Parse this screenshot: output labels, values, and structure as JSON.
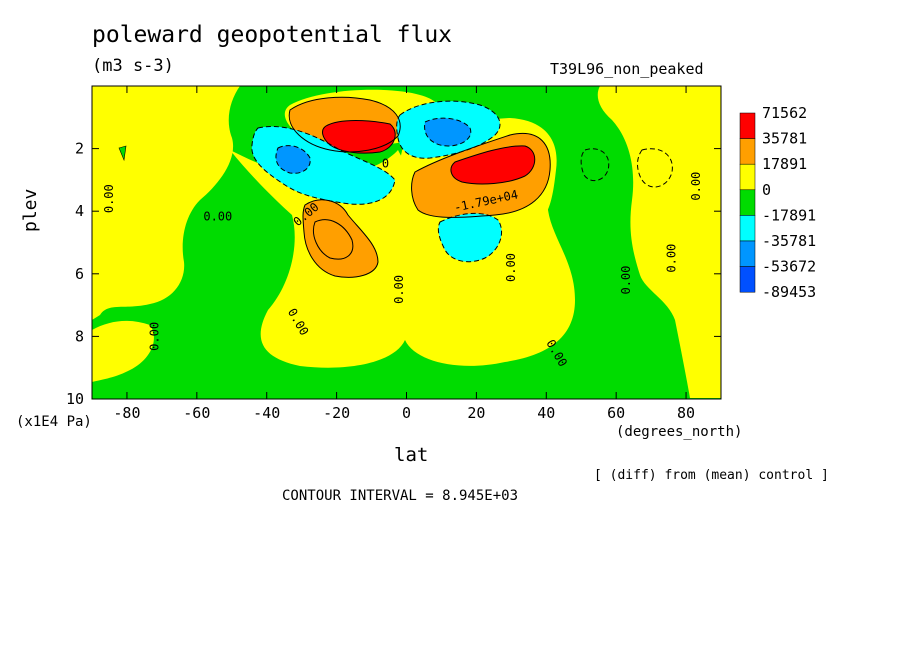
{
  "chart_data": {
    "type": "heatmap",
    "title": "poleward geopotential flux",
    "subtitle": "(m3 s-3)",
    "experiment": "T39L96_non_peaked",
    "xlabel": "lat",
    "xunits": "(degrees_north)",
    "ylabel": "plev",
    "yunits": "(x1E4 Pa)",
    "xlim": [
      -90,
      90
    ],
    "ylim": [
      10,
      0
    ],
    "x_ticks": [
      "-80",
      "-60",
      "-40",
      "-20",
      "0",
      "20",
      "40",
      "60",
      "80"
    ],
    "y_ticks": [
      "2",
      "4",
      "6",
      "8",
      "10"
    ],
    "note": "[ (diff) from (mean) control ]",
    "contour_interval_label": "CONTOUR INTERVAL = 8.945E+03",
    "colorbar": {
      "levels": [
        "71562",
        "35781",
        "17891",
        "0",
        "-17891",
        "-35781",
        "-53672",
        "-89453"
      ],
      "colors": [
        "#ff0000",
        "#ff9f00",
        "#ffff00",
        "#00dc00",
        "#00ffff",
        "#0096ff",
        "#0050ff"
      ]
    },
    "contour_labels": [
      {
        "text": "0.00",
        "lat": -84,
        "plev": 3.6,
        "rotate": -90
      },
      {
        "text": "0.00",
        "lat": -54,
        "plev": 4.3,
        "rotate": 0
      },
      {
        "text": "0.00",
        "lat": -71,
        "plev": 8.0,
        "rotate": -90
      },
      {
        "text": "0.00",
        "lat": -32,
        "plev": 7.6,
        "rotate": 60
      },
      {
        "text": "0.00",
        "lat": -28,
        "plev": 4.2,
        "rotate": -40
      },
      {
        "text": "0.00",
        "lat": -1,
        "plev": 6.5,
        "rotate": -90
      },
      {
        "text": "0.00",
        "lat": 31,
        "plev": 5.8,
        "rotate": -90
      },
      {
        "text": "0.00",
        "lat": 64,
        "plev": 6.2,
        "rotate": -90
      },
      {
        "text": "0.00",
        "lat": 77,
        "plev": 5.5,
        "rotate": -90
      },
      {
        "text": "0.00",
        "lat": 84,
        "plev": 3.2,
        "rotate": -90
      },
      {
        "text": "0.00",
        "lat": 42,
        "plev": 8.6,
        "rotate": 60
      },
      {
        "text": "-1.79e+04",
        "lat": 23,
        "plev": 3.8,
        "rotate": -12
      },
      {
        "text": "0",
        "lat": -6,
        "plev": 2.6,
        "rotate": 0
      }
    ]
  }
}
